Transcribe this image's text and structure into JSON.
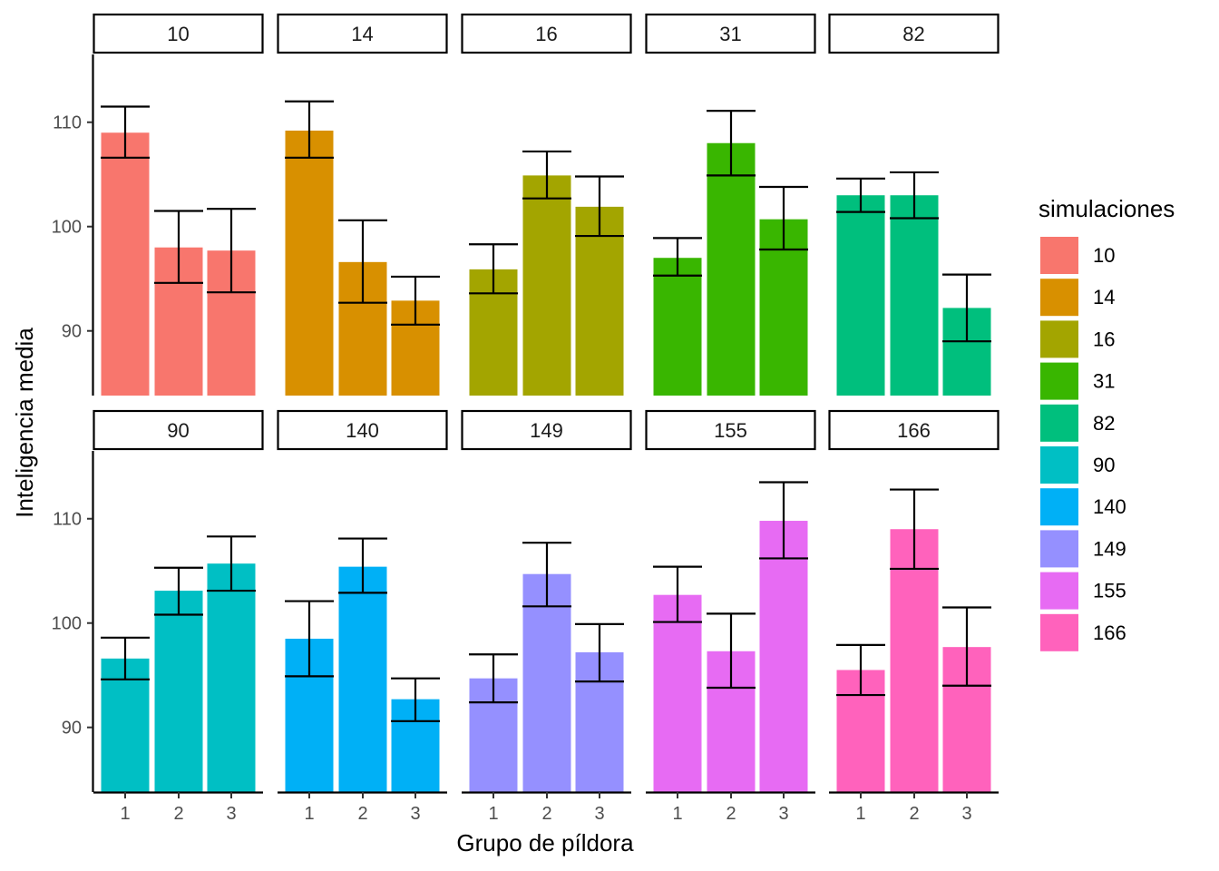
{
  "chart_data": {
    "type": "bar",
    "layout": "facet_wrap",
    "xlabel": "Grupo de píldora",
    "ylabel": "Inteligencia media",
    "categories": [
      "1",
      "2",
      "3"
    ],
    "ylim": [
      83.8,
      116.5
    ],
    "yticks": [
      90,
      100,
      110
    ],
    "ytick_labels": [
      "90",
      "100",
      "110"
    ],
    "legend": {
      "title": "simulaciones",
      "position": "right"
    },
    "grid": false,
    "panels": [
      {
        "label": "10",
        "color": "#F8766D",
        "values": [
          109.0,
          98.0,
          97.7
        ],
        "err_low": [
          106.6,
          94.6,
          93.7
        ],
        "err_high": [
          111.5,
          101.5,
          101.7
        ]
      },
      {
        "label": "14",
        "color": "#D89000",
        "values": [
          109.2,
          96.6,
          92.9
        ],
        "err_low": [
          106.6,
          92.7,
          90.6
        ],
        "err_high": [
          112.0,
          100.6,
          95.2
        ]
      },
      {
        "label": "16",
        "color": "#A3A500",
        "values": [
          95.9,
          104.9,
          101.9
        ],
        "err_low": [
          93.6,
          102.7,
          99.1
        ],
        "err_high": [
          98.3,
          107.2,
          104.8
        ]
      },
      {
        "label": "31",
        "color": "#39B600",
        "values": [
          97.0,
          108.0,
          100.7
        ],
        "err_low": [
          95.3,
          104.9,
          97.8
        ],
        "err_high": [
          98.9,
          111.1,
          103.8
        ]
      },
      {
        "label": "82",
        "color": "#00BF7D",
        "values": [
          103.0,
          103.0,
          92.2
        ],
        "err_low": [
          101.4,
          100.8,
          89.0
        ],
        "err_high": [
          104.6,
          105.2,
          95.4
        ]
      },
      {
        "label": "90",
        "color": "#00BFC4",
        "values": [
          96.6,
          103.1,
          105.7
        ],
        "err_low": [
          94.6,
          100.8,
          103.1
        ],
        "err_high": [
          98.6,
          105.3,
          108.3
        ]
      },
      {
        "label": "140",
        "color": "#00B0F6",
        "values": [
          98.5,
          105.4,
          92.7
        ],
        "err_low": [
          94.9,
          102.9,
          90.6
        ],
        "err_high": [
          102.1,
          108.1,
          94.7
        ]
      },
      {
        "label": "149",
        "color": "#9590FF",
        "values": [
          94.7,
          104.7,
          97.2
        ],
        "err_low": [
          92.4,
          101.6,
          94.4
        ],
        "err_high": [
          97.0,
          107.7,
          99.9
        ]
      },
      {
        "label": "155",
        "color": "#E76BF3",
        "values": [
          102.7,
          97.3,
          109.8
        ],
        "err_low": [
          100.1,
          93.8,
          106.2
        ],
        "err_high": [
          105.4,
          100.9,
          113.5
        ]
      },
      {
        "label": "166",
        "color": "#FF62BC",
        "values": [
          95.5,
          109.0,
          97.7
        ],
        "err_low": [
          93.1,
          105.2,
          94.0
        ],
        "err_high": [
          97.9,
          112.8,
          101.5
        ]
      }
    ]
  }
}
